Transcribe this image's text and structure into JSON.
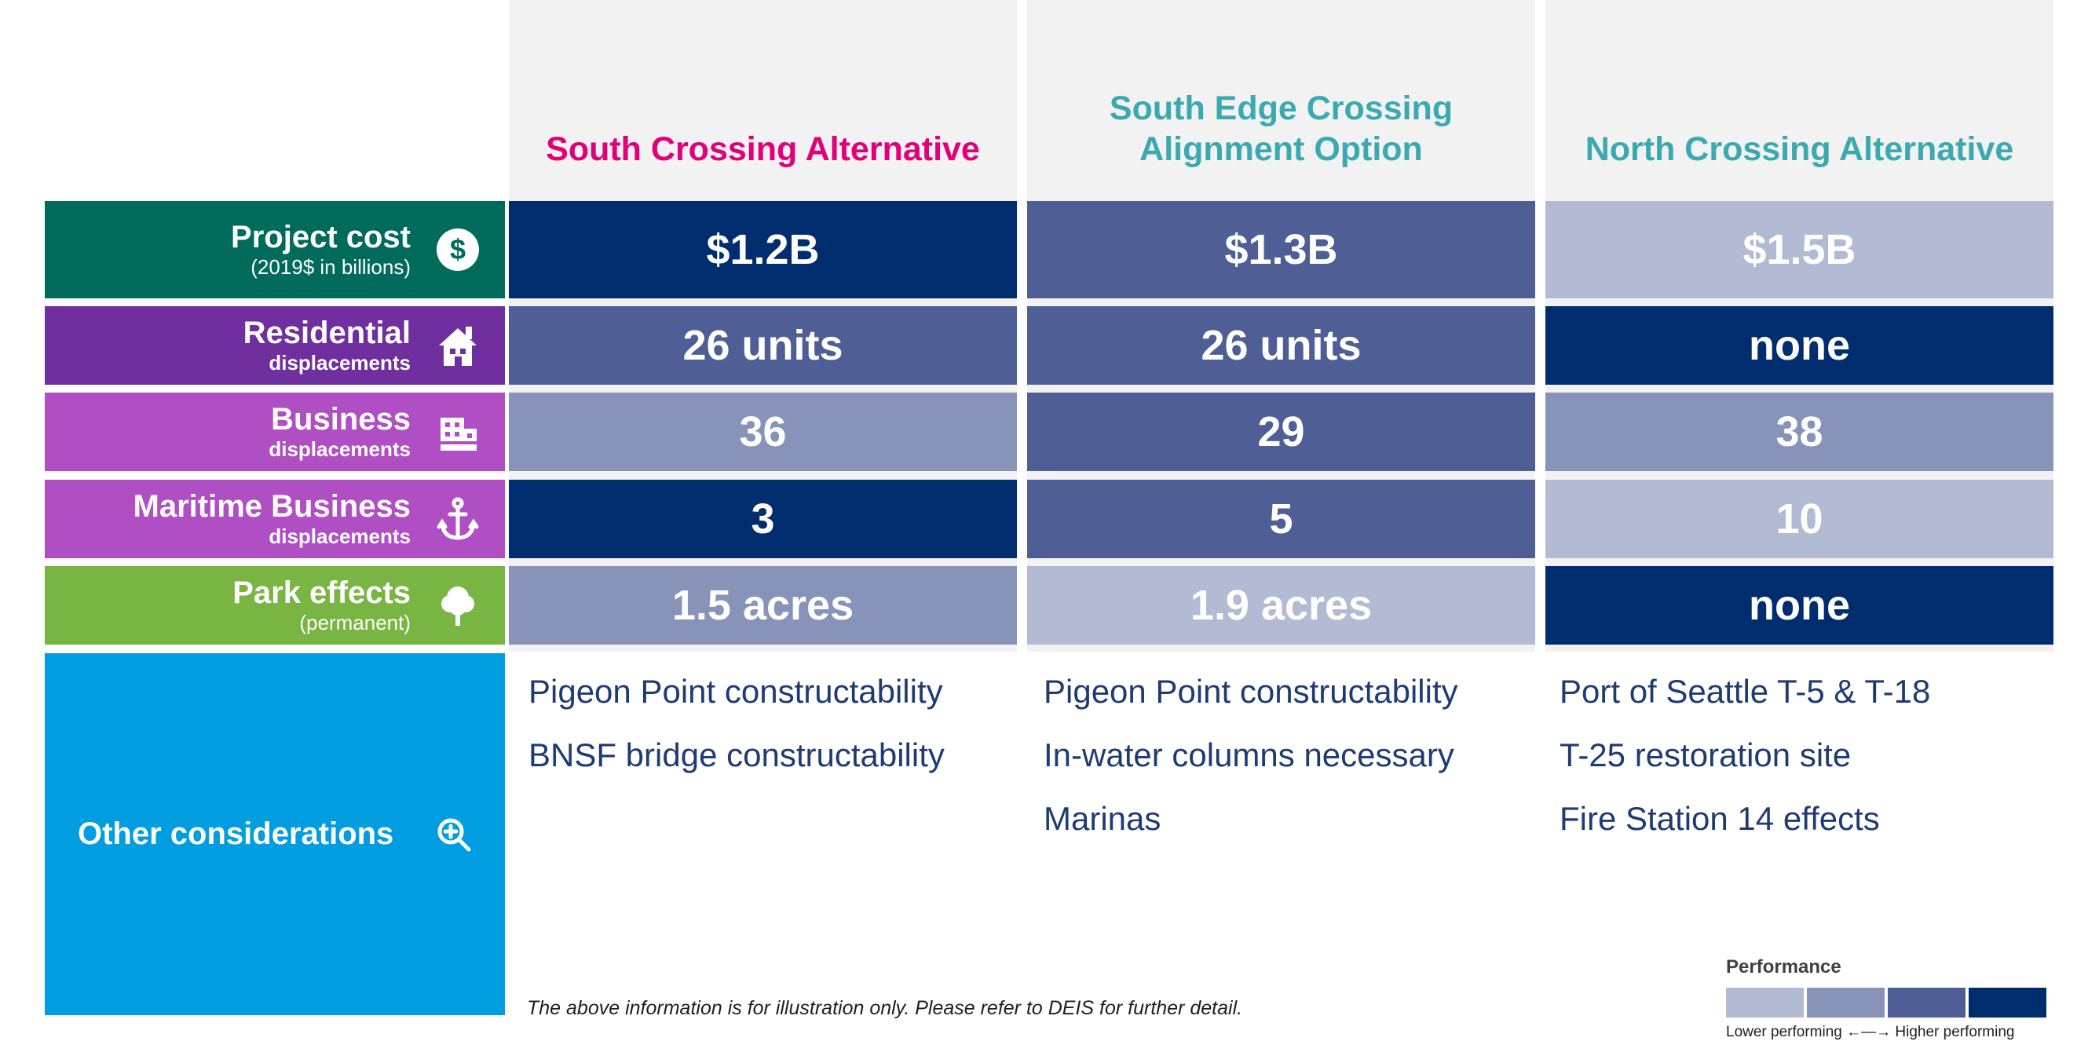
{
  "colors": {
    "perf_1": "#b3bbd4",
    "perf_2": "#8793b8",
    "perf_3": "#4f5f95",
    "perf_4": "#002d6d",
    "project_cost": "#006b5a",
    "residential": "#6f2f9e",
    "business": "#b04fc4",
    "park": "#78b543",
    "other": "#009ee0"
  },
  "columns": [
    {
      "title_lines": [
        "South Crossing Alternative"
      ],
      "color": "#e2007a"
    },
    {
      "title_lines": [
        "South Edge Crossing",
        "Alignment Option"
      ],
      "color": "#3aa9b0"
    },
    {
      "title_lines": [
        "North Crossing Alternative"
      ],
      "color": "#3aa9b0"
    }
  ],
  "rows": [
    {
      "label": "Project cost",
      "sublabel": "(2019$ in billions)",
      "sub_bold": false,
      "icon": "dollar-icon",
      "color": "#006b5a",
      "cells": [
        {
          "value": "$1.2B",
          "level": 4
        },
        {
          "value": "$1.3B",
          "level": 3
        },
        {
          "value": "$1.5B",
          "level": 1
        }
      ]
    },
    {
      "label": "Residential",
      "sublabel": "displacements",
      "sub_bold": true,
      "icon": "house-icon",
      "color": "#6f2f9e",
      "cells": [
        {
          "value": "26 units",
          "level": 3
        },
        {
          "value": "26 units",
          "level": 3
        },
        {
          "value": "none",
          "level": 4
        }
      ]
    },
    {
      "label": "Business",
      "sublabel": "displacements",
      "sub_bold": true,
      "icon": "building-icon",
      "color": "#b04fc4",
      "cells": [
        {
          "value": "36",
          "level": 2
        },
        {
          "value": "29",
          "level": 3
        },
        {
          "value": "38",
          "level": 2
        }
      ]
    },
    {
      "label": "Maritime Business",
      "sublabel": "displacements",
      "sub_bold": true,
      "icon": "anchor-icon",
      "color": "#b04fc4",
      "cells": [
        {
          "value": "3",
          "level": 4
        },
        {
          "value": "5",
          "level": 3
        },
        {
          "value": "10",
          "level": 1
        }
      ]
    },
    {
      "label": "Park effects",
      "sublabel": "(permanent)",
      "sub_bold": false,
      "icon": "tree-icon",
      "color": "#78b543",
      "cells": [
        {
          "value": "1.5 acres",
          "level": 2
        },
        {
          "value": "1.9 acres",
          "level": 1
        },
        {
          "value": "none",
          "level": 4
        }
      ]
    }
  ],
  "other": {
    "label": "Other considerations",
    "icon": "magnify-plus-icon",
    "items": [
      [
        "Pigeon Point constructability",
        "BNSF bridge constructability"
      ],
      [
        "Pigeon Point constructability",
        "In-water columns necessary",
        "Marinas"
      ],
      [
        "Port of Seattle T-5 & T-18",
        "T-25 restoration site",
        "Fire Station 14 effects"
      ]
    ]
  },
  "footnote": "The above information is for illustration only. Please refer to DEIS for further detail.",
  "legend": {
    "title": "Performance",
    "caption": "Lower performing ←—→ Higher performing"
  }
}
